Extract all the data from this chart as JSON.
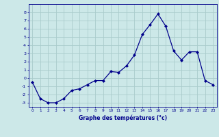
{
  "x": [
    0,
    1,
    2,
    3,
    4,
    5,
    6,
    7,
    8,
    9,
    10,
    11,
    12,
    13,
    14,
    15,
    16,
    17,
    18,
    19,
    20,
    21,
    22,
    23
  ],
  "y": [
    -0.5,
    -2.5,
    -3.0,
    -3.0,
    -2.5,
    -1.5,
    -1.3,
    -0.8,
    -0.3,
    -0.3,
    0.8,
    0.7,
    1.5,
    2.8,
    5.3,
    6.5,
    7.8,
    6.3,
    3.3,
    2.2,
    3.2,
    3.2,
    -0.3,
    -0.8
  ],
  "line_color": "#00008b",
  "marker": "D",
  "marker_size": 2,
  "bg_color": "#cce8e8",
  "grid_color": "#aacccc",
  "xlabel": "Graphe des températures (°c)",
  "xlabel_color": "#00008b",
  "tick_color": "#00008b",
  "xlim": [
    -0.5,
    23.5
  ],
  "ylim": [
    -3.5,
    9.0
  ],
  "yticks": [
    -3,
    -2,
    -1,
    0,
    1,
    2,
    3,
    4,
    5,
    6,
    7,
    8
  ],
  "xticks": [
    0,
    1,
    2,
    3,
    4,
    5,
    6,
    7,
    8,
    9,
    10,
    11,
    12,
    13,
    14,
    15,
    16,
    17,
    18,
    19,
    20,
    21,
    22,
    23
  ],
  "xtick_labels": [
    "0",
    "1",
    "2",
    "3",
    "4",
    "5",
    "6",
    "7",
    "8",
    "9",
    "10",
    "11",
    "12",
    "13",
    "14",
    "15",
    "16",
    "17",
    "18",
    "19",
    "20",
    "21",
    "22",
    "23"
  ]
}
